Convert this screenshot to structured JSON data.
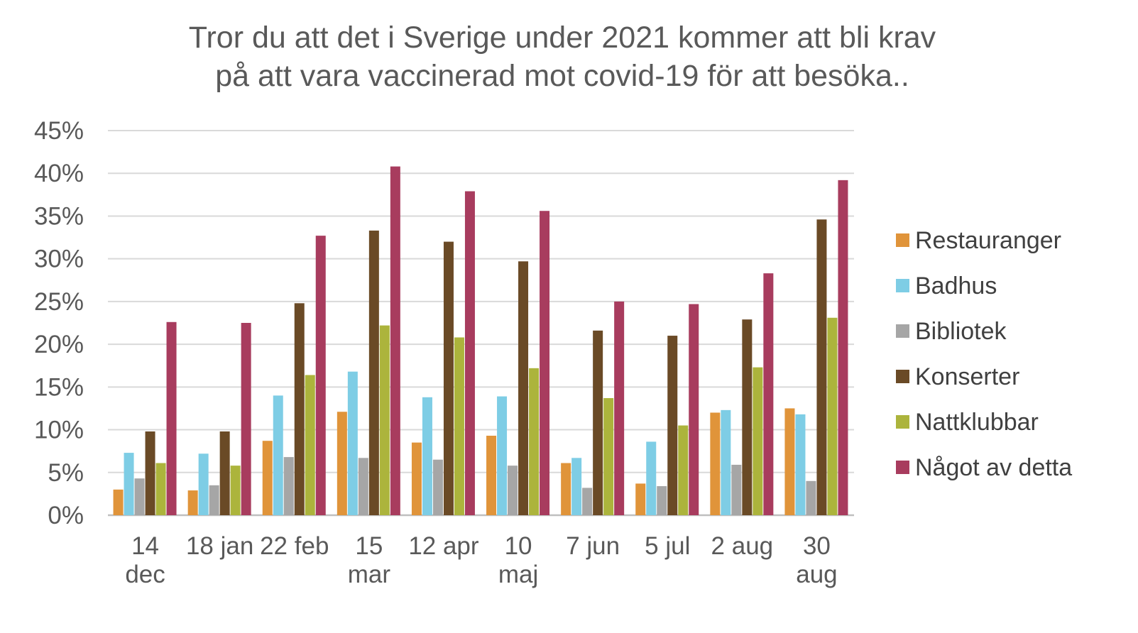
{
  "chart_data": {
    "type": "bar",
    "title_lines": [
      "Tror du att det i Sverige under 2021 kommer att bli krav",
      "på att vara vaccinerad mot covid-19 för att besöka.."
    ],
    "xlabel": "",
    "ylabel": "",
    "ylim": [
      0,
      45
    ],
    "yticks": [
      0,
      5,
      10,
      15,
      20,
      25,
      30,
      35,
      40,
      45
    ],
    "ytick_format": "{v}%",
    "grid": true,
    "legend_position": "right",
    "categories": [
      [
        "14",
        "dec"
      ],
      [
        "18 jan"
      ],
      [
        "22 feb"
      ],
      [
        "15",
        "mar"
      ],
      [
        "12 apr"
      ],
      [
        "10",
        "maj"
      ],
      [
        "7 jun"
      ],
      [
        "5 jul"
      ],
      [
        "2 aug"
      ],
      [
        "30",
        "aug"
      ]
    ],
    "series": [
      {
        "name": "Restauranger",
        "color": "#E0943A",
        "values": [
          3.0,
          2.9,
          8.7,
          12.1,
          8.5,
          9.3,
          6.1,
          3.7,
          12.0,
          12.5
        ]
      },
      {
        "name": "Badhus",
        "color": "#7ECDE5",
        "values": [
          7.3,
          7.2,
          14.0,
          16.8,
          13.8,
          13.9,
          6.7,
          8.6,
          12.3,
          11.8
        ]
      },
      {
        "name": "Bibliotek",
        "color": "#A6A6A6",
        "values": [
          4.3,
          3.5,
          6.8,
          6.7,
          6.5,
          5.8,
          3.2,
          3.4,
          5.9,
          4.0
        ]
      },
      {
        "name": "Konserter",
        "color": "#6A4A26",
        "values": [
          9.8,
          9.8,
          24.8,
          33.3,
          32.0,
          29.7,
          21.6,
          21.0,
          22.9,
          34.6
        ]
      },
      {
        "name": "Nattklubbar",
        "color": "#ACB43C",
        "values": [
          6.1,
          5.8,
          16.4,
          22.2,
          20.8,
          17.2,
          13.7,
          10.5,
          17.3,
          23.1
        ]
      },
      {
        "name": "Något av detta",
        "color": "#A83C5E",
        "values": [
          22.6,
          22.5,
          32.7,
          40.8,
          37.9,
          35.6,
          25.0,
          24.7,
          28.3,
          39.2
        ]
      }
    ],
    "grid_color": "#D9D9D9",
    "axis_color": "#BFBFBF"
  }
}
